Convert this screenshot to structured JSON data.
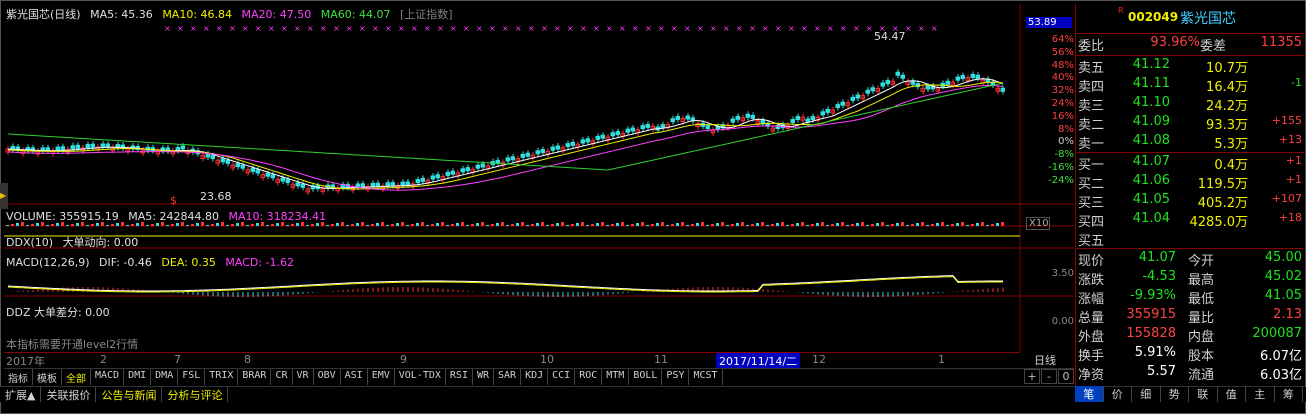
{
  "header": {
    "stock_title": "紫光国芯(日线)",
    "ma5": "MA5: 45.36",
    "ma10": "MA10: 46.84",
    "ma20": "MA20: 47.50",
    "ma60": "MA60: 44.07",
    "index_btn": "[上证指数]"
  },
  "price_axis": {
    "current": "53.89",
    "ticks": [
      "64%",
      "56%",
      "48%",
      "40%",
      "32%",
      "24%",
      "16%",
      "8%",
      "0%",
      "-8%",
      "-16%",
      "-24%"
    ]
  },
  "annotations": {
    "high": "54.47",
    "low": "23.68",
    "marker": "$"
  },
  "volume": {
    "label": "VOLUME: 355915.19",
    "ma5": "MA5: 242844.80",
    "ma10": "MA10: 318234.41",
    "scale": "X10"
  },
  "ddx": {
    "label": "DDX(10)",
    "name": "大单动向: 0.00"
  },
  "macd": {
    "label": "MACD(12,26,9)",
    "dif": "DIF: -0.46",
    "dea": "DEA: 0.35",
    "macd": "MACD: -1.62",
    "tick": "3.50"
  },
  "ddz": {
    "label": "DDZ 大单差分: 0.00",
    "tick": "0.00",
    "note": "本指标需要开通level2行情"
  },
  "time_axis": {
    "labels": [
      "2017年",
      "2",
      "7",
      "8",
      "9",
      "10",
      "11",
      "12",
      "1"
    ],
    "current_date": "2017/11/14/二",
    "period": "日线"
  },
  "indicator_tabs": [
    "指标",
    "模板",
    "全部",
    "MACD",
    "DMI",
    "DMA",
    "FSL",
    "TRIX",
    "BRAR",
    "CR",
    "VR",
    "OBV",
    "ASI",
    "EMV",
    "VOL-TDX",
    "RSI",
    "WR",
    "SAR",
    "KDJ",
    "CCI",
    "ROC",
    "MTM",
    "BOLL",
    "PSY",
    "MCST"
  ],
  "indicator_ctrl": [
    "+",
    "-",
    "0"
  ],
  "bottom_tabs": [
    "扩展▲",
    "关联报价",
    "公告与新闻",
    "分析与评论"
  ],
  "right_panel": {
    "r_mark": "R",
    "code": "002049",
    "name": "紫光国芯",
    "weibi_label": "委比",
    "weibi": "93.96%",
    "weicha_label": "委差",
    "weicha": "11355",
    "sells": [
      {
        "label": "卖五",
        "price": "41.12",
        "vol": "10.7万",
        "chg": ""
      },
      {
        "label": "卖四",
        "price": "41.11",
        "vol": "16.4万",
        "chg": "-1"
      },
      {
        "label": "卖三",
        "price": "41.10",
        "vol": "24.2万",
        "chg": ""
      },
      {
        "label": "卖二",
        "price": "41.09",
        "vol": "93.3万",
        "chg": "+155"
      },
      {
        "label": "卖一",
        "price": "41.08",
        "vol": "5.3万",
        "chg": "+13"
      }
    ],
    "buys": [
      {
        "label": "买一",
        "price": "41.07",
        "vol": "0.4万",
        "chg": "+1"
      },
      {
        "label": "买二",
        "price": "41.06",
        "vol": "119.5万",
        "chg": "+1"
      },
      {
        "label": "买三",
        "price": "41.05",
        "vol": "405.2万",
        "chg": "+107"
      },
      {
        "label": "买四",
        "price": "41.04",
        "vol": "4285.0万",
        "chg": "+18"
      },
      {
        "label": "买五",
        "price": "",
        "vol": "",
        "chg": ""
      }
    ],
    "stats": [
      {
        "k1": "现价",
        "v1": "41.07",
        "k2": "今开",
        "v2": "45.00"
      },
      {
        "k1": "涨跌",
        "v1": "-4.53",
        "k2": "最高",
        "v2": "45.02"
      },
      {
        "k1": "涨幅",
        "v1": "-9.93%",
        "k2": "最低",
        "v2": "41.05"
      },
      {
        "k1": "总量",
        "v1": "355915",
        "k2": "量比",
        "v2": "2.13"
      },
      {
        "k1": "外盘",
        "v1": "155828",
        "k2": "内盘",
        "v2": "200087"
      },
      {
        "k1": "换手",
        "v1": "5.91%",
        "k2": "股本",
        "v2": "6.07亿"
      },
      {
        "k1": "净资",
        "v1": "5.57",
        "k2": "流通",
        "v2": "6.03亿"
      }
    ],
    "tabs": [
      "笔",
      "价",
      "细",
      "势",
      "联",
      "值",
      "主",
      "筹"
    ]
  }
}
